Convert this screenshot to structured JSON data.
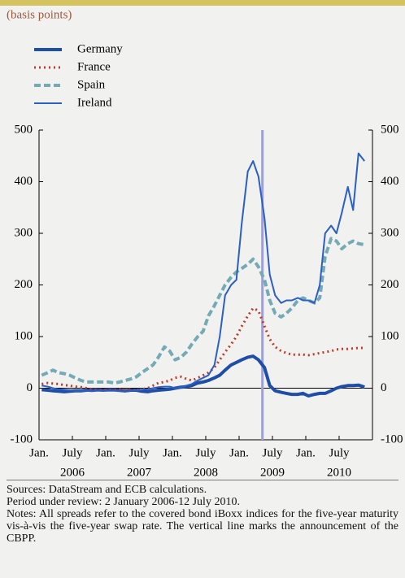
{
  "chart_data": {
    "type": "line",
    "subtitle": "(basis points)",
    "x": [
      2006.04,
      2006.13,
      2006.21,
      2006.29,
      2006.38,
      2006.46,
      2006.54,
      2006.63,
      2006.71,
      2006.79,
      2006.88,
      2006.96,
      2007.04,
      2007.13,
      2007.21,
      2007.29,
      2007.38,
      2007.46,
      2007.54,
      2007.63,
      2007.71,
      2007.79,
      2007.88,
      2007.96,
      2008.04,
      2008.13,
      2008.21,
      2008.29,
      2008.38,
      2008.46,
      2008.54,
      2008.63,
      2008.71,
      2008.79,
      2008.88,
      2008.96,
      2009.04,
      2009.13,
      2009.21,
      2009.29,
      2009.38,
      2009.46,
      2009.54,
      2009.63,
      2009.71,
      2009.79,
      2009.88,
      2009.96,
      2010.04,
      2010.13,
      2010.21,
      2010.29,
      2010.38,
      2010.46,
      2010.54,
      2010.63,
      2010.71,
      2010.79,
      2010.88
    ],
    "series": [
      {
        "name": "Germany",
        "color": "#1f4ea6",
        "style": "solid",
        "width": 4,
        "values": [
          -3,
          -4,
          -5,
          -6,
          -7,
          -6,
          -5,
          -5,
          -4,
          -3,
          -3,
          -4,
          -3,
          -3,
          -4,
          -5,
          -4,
          -4,
          -6,
          -7,
          -5,
          -4,
          -3,
          -2,
          0,
          2,
          3,
          5,
          10,
          12,
          15,
          20,
          25,
          35,
          45,
          50,
          55,
          60,
          62,
          55,
          40,
          5,
          -5,
          -8,
          -10,
          -12,
          -12,
          -10,
          -15,
          -12,
          -10,
          -10,
          -5,
          0,
          3,
          5,
          5,
          6,
          2
        ]
      },
      {
        "name": "France",
        "color": "#c0392b",
        "style": "dotted",
        "width": 3,
        "values": [
          8,
          10,
          9,
          8,
          6,
          5,
          3,
          2,
          0,
          -2,
          -3,
          -3,
          -3,
          -3,
          -2,
          -3,
          -2,
          -4,
          -2,
          0,
          5,
          10,
          12,
          15,
          20,
          22,
          18,
          15,
          20,
          25,
          30,
          40,
          55,
          70,
          85,
          100,
          120,
          140,
          155,
          150,
          120,
          95,
          80,
          72,
          68,
          65,
          65,
          65,
          64,
          66,
          68,
          70,
          72,
          75,
          76,
          76,
          77,
          78,
          78
        ]
      },
      {
        "name": "Spain",
        "color": "#74aab6",
        "style": "dashed",
        "width": 4,
        "values": [
          25,
          30,
          35,
          30,
          28,
          25,
          20,
          15,
          12,
          12,
          12,
          12,
          12,
          10,
          12,
          15,
          18,
          22,
          30,
          38,
          45,
          60,
          80,
          72,
          55,
          60,
          70,
          85,
          100,
          110,
          140,
          160,
          180,
          200,
          215,
          225,
          232,
          240,
          250,
          235,
          210,
          170,
          145,
          138,
          145,
          155,
          170,
          175,
          170,
          165,
          175,
          255,
          290,
          285,
          270,
          280,
          285,
          280,
          278
        ]
      },
      {
        "name": "Ireland",
        "color": "#2b5fc2",
        "style": "solid",
        "width": 2,
        "values": [
          5,
          3,
          0,
          -2,
          -3,
          -4,
          -5,
          -5,
          -5,
          -6,
          -5,
          -5,
          -5,
          -5,
          -6,
          -7,
          -5,
          -4,
          -3,
          -2,
          0,
          2,
          3,
          3,
          0,
          2,
          5,
          8,
          15,
          20,
          25,
          45,
          100,
          180,
          200,
          210,
          320,
          420,
          440,
          410,
          330,
          220,
          180,
          165,
          170,
          170,
          175,
          170,
          170,
          165,
          200,
          300,
          315,
          300,
          340,
          390,
          345,
          455,
          440
        ]
      }
    ],
    "xlim": [
      2006,
      2011
    ],
    "xticks": [
      {
        "value": 2006,
        "label": "Jan."
      },
      {
        "value": 2006.5,
        "label": "July"
      },
      {
        "value": 2007,
        "label": "Jan."
      },
      {
        "value": 2007.5,
        "label": "July"
      },
      {
        "value": 2008,
        "label": "Jan."
      },
      {
        "value": 2008.5,
        "label": "July"
      },
      {
        "value": 2009,
        "label": "Jan."
      },
      {
        "value": 2009.5,
        "label": "July"
      },
      {
        "value": 2010,
        "label": "Jan."
      },
      {
        "value": 2010.5,
        "label": "July"
      }
    ],
    "year_labels": [
      {
        "value": 2006.5,
        "label": "2006"
      },
      {
        "value": 2007.5,
        "label": "2007"
      },
      {
        "value": 2008.5,
        "label": "2008"
      },
      {
        "value": 2009.5,
        "label": "2009"
      },
      {
        "value": 2010.5,
        "label": "2010"
      }
    ],
    "ylim": [
      -100,
      500
    ],
    "yticks": [
      -100,
      0,
      100,
      200,
      300,
      400,
      500
    ],
    "y2lim": [
      -100,
      500
    ],
    "y2ticks": [
      -100,
      0,
      100,
      200,
      300,
      400,
      500
    ],
    "vertical_line": {
      "x": 2009.35,
      "color": "#9b9ee0"
    },
    "grid": false,
    "legend": "top-left"
  },
  "footer": {
    "sources": "Sources: DataStream and ECB calculations.",
    "period": "Period under review: 2 January 2006-12 July 2010.",
    "notes": "Notes: All spreads refer to the covered bond iBoxx indices for the five-year maturity vis-à-vis the five-year swap rate. The vertical line marks the announcement of the CBPP."
  }
}
